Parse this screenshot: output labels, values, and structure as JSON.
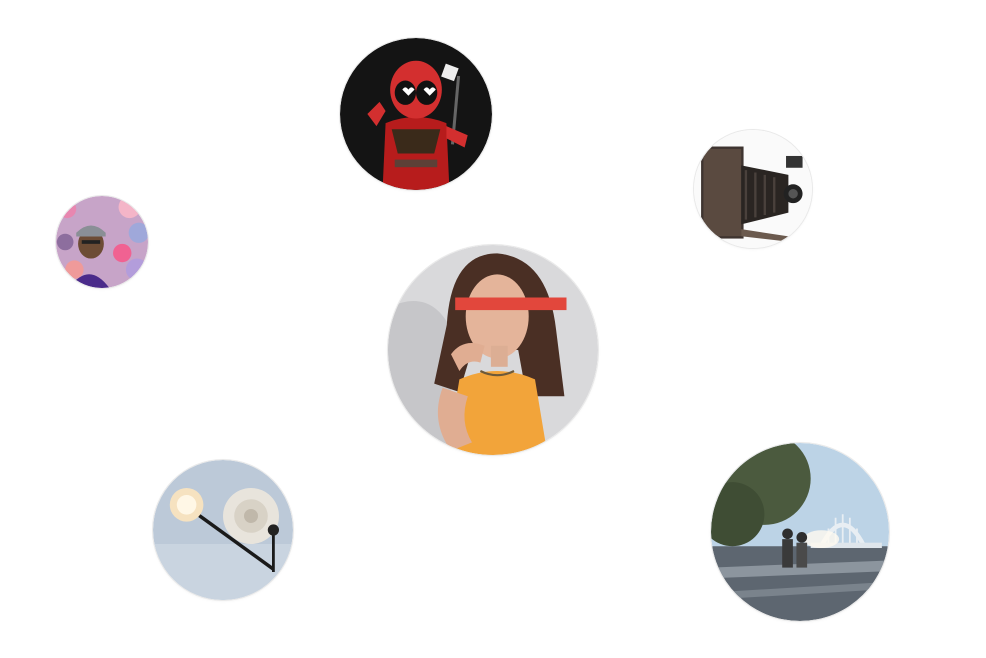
{
  "gallery": {
    "bubbles": [
      {
        "id": "deadpool",
        "caption": "Deadpool toy figure photo"
      },
      {
        "id": "camera",
        "caption": "Vintage folding camera photo"
      },
      {
        "id": "man",
        "caption": "Man with cap in front of flowers"
      },
      {
        "id": "woman",
        "caption": "Woman in yellow top with red stripe"
      },
      {
        "id": "lamp",
        "caption": "Ceiling lamp and rosette"
      },
      {
        "id": "bridge",
        "caption": "People walking toward bridge at sunset"
      }
    ]
  },
  "colors": {
    "background": "#ffffff",
    "ring": "#e9e9e9",
    "accent_red": "#e2473c",
    "accent_yellow": "#f0a532"
  }
}
